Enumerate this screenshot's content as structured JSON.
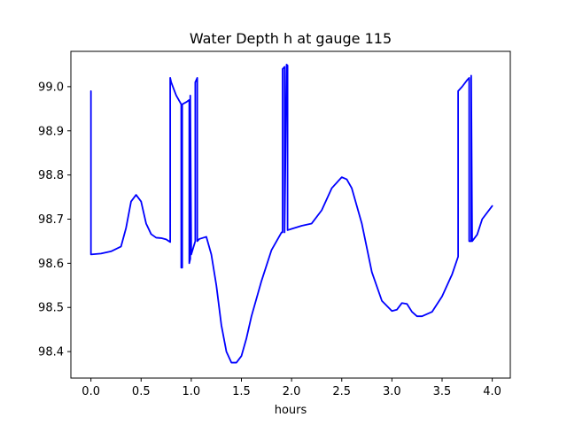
{
  "chart_data": {
    "type": "line",
    "title": "Water Depth h at gauge 115",
    "xlabel": "hours",
    "ylabel": "",
    "xlim": [
      -0.2,
      4.18
    ],
    "ylim": [
      98.34,
      99.08
    ],
    "xticks": [
      0.0,
      0.5,
      1.0,
      1.5,
      2.0,
      2.5,
      3.0,
      3.5,
      4.0
    ],
    "xtick_labels": [
      "0.0",
      "0.5",
      "1.0",
      "1.5",
      "2.0",
      "2.5",
      "3.0",
      "3.5",
      "4.0"
    ],
    "yticks": [
      98.4,
      98.5,
      98.6,
      98.7,
      98.8,
      98.9,
      99.0
    ],
    "ytick_labels": [
      "98.4",
      "98.5",
      "98.6",
      "98.7",
      "98.8",
      "98.9",
      "99.0"
    ],
    "grid": false,
    "legend": "none",
    "series": [
      {
        "color": "#0000ff",
        "x": [
          0.0,
          0.0,
          0.0,
          0.1,
          0.2,
          0.3,
          0.35,
          0.4,
          0.45,
          0.5,
          0.55,
          0.6,
          0.65,
          0.7,
          0.75,
          0.79,
          0.79,
          0.8,
          0.85,
          0.9,
          0.9,
          0.91,
          0.91,
          0.95,
          0.98,
          0.98,
          0.99,
          0.99,
          1.0,
          1.04,
          1.04,
          1.06,
          1.06,
          1.08,
          1.15,
          1.2,
          1.25,
          1.3,
          1.35,
          1.4,
          1.45,
          1.5,
          1.55,
          1.6,
          1.7,
          1.8,
          1.9,
          1.91,
          1.91,
          1.93,
          1.93,
          1.95,
          1.96,
          1.96,
          2.0,
          2.1,
          2.2,
          2.3,
          2.4,
          2.5,
          2.55,
          2.6,
          2.7,
          2.8,
          2.9,
          3.0,
          3.05,
          3.1,
          3.15,
          3.2,
          3.25,
          3.3,
          3.4,
          3.5,
          3.6,
          3.66,
          3.66,
          3.7,
          3.75,
          3.77,
          3.77,
          3.79,
          3.79,
          3.8,
          3.85,
          3.9,
          4.0
        ],
        "y": [
          98.62,
          98.99,
          98.62,
          98.622,
          98.627,
          98.638,
          98.68,
          98.74,
          98.755,
          98.74,
          98.69,
          98.666,
          98.658,
          98.657,
          98.654,
          98.648,
          99.02,
          99.01,
          98.98,
          98.96,
          98.59,
          98.59,
          98.96,
          98.965,
          98.97,
          98.6,
          98.61,
          98.98,
          98.62,
          98.65,
          99.01,
          99.02,
          98.65,
          98.655,
          98.66,
          98.62,
          98.55,
          98.46,
          98.4,
          98.375,
          98.375,
          98.39,
          98.43,
          98.48,
          98.56,
          98.63,
          98.67,
          98.67,
          99.04,
          99.045,
          98.67,
          99.05,
          99.048,
          98.675,
          98.678,
          98.685,
          98.69,
          98.72,
          98.77,
          98.795,
          98.79,
          98.77,
          98.69,
          98.58,
          98.515,
          98.492,
          98.495,
          98.51,
          98.508,
          98.49,
          98.48,
          98.48,
          98.49,
          98.525,
          98.575,
          98.615,
          98.99,
          99.0,
          99.015,
          99.02,
          98.65,
          98.65,
          99.025,
          98.65,
          98.665,
          98.7,
          98.73
        ]
      }
    ]
  }
}
